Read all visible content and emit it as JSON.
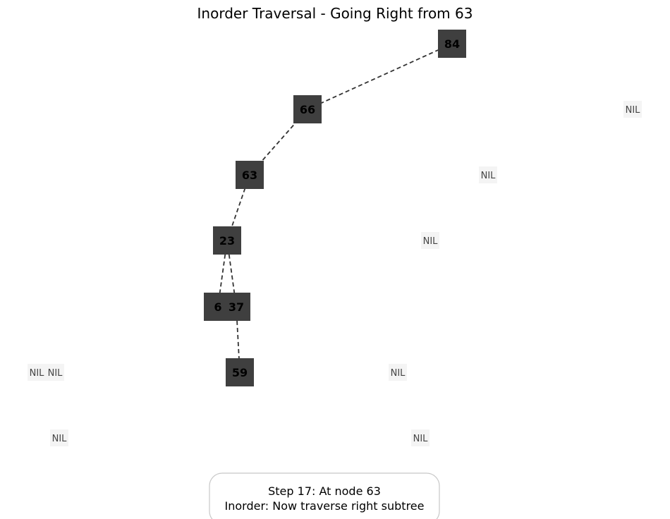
{
  "title": "Inorder Traversal - Going Right from 63",
  "status": {
    "line1": "Step 17: At node 63",
    "line2": "Inorder: Now traverse right subtree"
  },
  "colors": {
    "node_fill": "#3f3f3f",
    "node_text": "#000000",
    "edge": "#333333",
    "nil_text": "#444444"
  },
  "nodes": [
    {
      "id": "n84",
      "label": "84"
    },
    {
      "id": "n66",
      "label": "66"
    },
    {
      "id": "n63",
      "label": "63"
    },
    {
      "id": "n23",
      "label": "23"
    },
    {
      "id": "n6",
      "label": "6"
    },
    {
      "id": "n37",
      "label": "37"
    },
    {
      "id": "n59",
      "label": "59"
    }
  ],
  "edges": [
    {
      "from": "n84",
      "to": "n66"
    },
    {
      "from": "n66",
      "to": "n63"
    },
    {
      "from": "n63",
      "to": "n23"
    },
    {
      "from": "n23",
      "to": "n6"
    },
    {
      "from": "n23",
      "to": "n37"
    },
    {
      "from": "n37",
      "to": "n59"
    }
  ],
  "nil_label": "NIL"
}
